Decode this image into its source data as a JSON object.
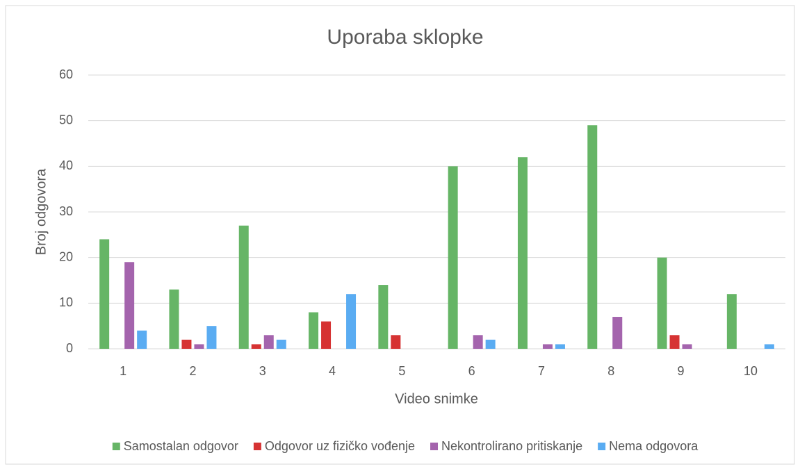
{
  "chart_data": {
    "type": "bar",
    "title": "Uporaba sklopke",
    "x_label": "Video snimke",
    "y_label": "Broj odgovora",
    "categories": [
      "1",
      "2",
      "3",
      "4",
      "5",
      "6",
      "7",
      "8",
      "9",
      "10"
    ],
    "series": [
      {
        "name": "Samostalan odgovor",
        "color": "#66b566",
        "values": [
          24,
          13,
          27,
          8,
          14,
          40,
          42,
          49,
          20,
          12
        ]
      },
      {
        "name": "Odgovor uz fizičko vođenje",
        "color": "#d63333",
        "values": [
          0,
          2,
          1,
          6,
          3,
          0,
          0,
          0,
          3,
          0
        ]
      },
      {
        "name": "Nekontrolirano pritiskanje",
        "color": "#a464ad",
        "values": [
          19,
          1,
          3,
          0,
          0,
          3,
          1,
          7,
          1,
          0
        ]
      },
      {
        "name": "Nema odgovora",
        "color": "#5aacf2",
        "values": [
          4,
          5,
          2,
          12,
          0,
          2,
          1,
          0,
          0,
          1
        ]
      }
    ],
    "ylim": [
      0,
      60
    ],
    "yticks": [
      0,
      10,
      20,
      30,
      40,
      50,
      60
    ],
    "grid": true,
    "legend": "bottom"
  }
}
